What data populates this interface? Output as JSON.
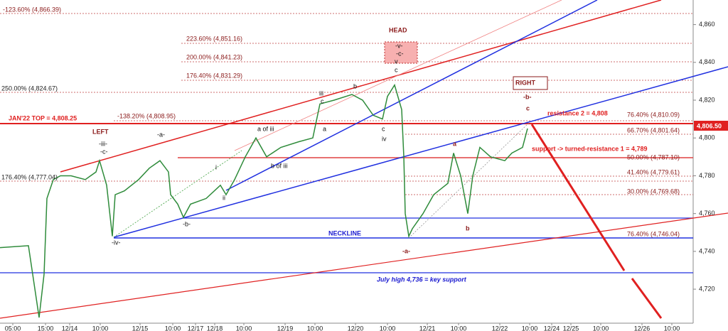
{
  "chart_data": {
    "type": "line",
    "xlim": [
      0,
      97.5
    ],
    "xticks": [
      {
        "value": 1.8,
        "label": "05:00"
      },
      {
        "value": 6.4,
        "label": "15:00"
      },
      {
        "value": 9.8,
        "label": "12/14"
      },
      {
        "value": 14.1,
        "label": "10:00"
      },
      {
        "value": 19.7,
        "label": "12/15"
      },
      {
        "value": 24.3,
        "label": "10:00"
      },
      {
        "value": 27.5,
        "label": "12/17"
      },
      {
        "value": 30.2,
        "label": "12/18"
      },
      {
        "value": 34.3,
        "label": "10:00"
      },
      {
        "value": 40.1,
        "label": "12/19"
      },
      {
        "value": 44.3,
        "label": "10:00"
      },
      {
        "value": 50.0,
        "label": "12/20"
      },
      {
        "value": 54.5,
        "label": "10:00"
      },
      {
        "value": 60.1,
        "label": "12/21"
      },
      {
        "value": 64.5,
        "label": "10:00"
      },
      {
        "value": 70.3,
        "label": "12/22"
      },
      {
        "value": 74.5,
        "label": "10:00"
      },
      {
        "value": 77.6,
        "label": "12/24"
      },
      {
        "value": 80.3,
        "label": "12/25"
      },
      {
        "value": 84.5,
        "label": "10:00"
      },
      {
        "value": 90.3,
        "label": "12/26"
      },
      {
        "value": 94.5,
        "label": "10:00"
      }
    ],
    "ylim": [
      4702,
      4873
    ],
    "yticks": [
      {
        "value": 4720,
        "label": "4,720"
      },
      {
        "value": 4740,
        "label": "4,740"
      },
      {
        "value": 4760,
        "label": "4,760"
      },
      {
        "value": 4780,
        "label": "4,780"
      },
      {
        "value": 4800,
        "label": "4,800"
      },
      {
        "value": 4820,
        "label": "4,820"
      },
      {
        "value": 4840,
        "label": "4,840"
      },
      {
        "value": 4860,
        "label": "4,860"
      }
    ],
    "series": [
      {
        "color": "#2e8b3a",
        "x": [
          0,
          4,
          5.5,
          6.2,
          6.6,
          7.5,
          8.5,
          10,
          12,
          13.5,
          14,
          15,
          15.8,
          16.2,
          17.5,
          19.5,
          21,
          22.5,
          23.7,
          24,
          25,
          25.8,
          26.8,
          29,
          31,
          31.8,
          33,
          34.5,
          36,
          37.5,
          39.5,
          42,
          44,
          45,
          47,
          49.5,
          51,
          52.5,
          53.8,
          54.5,
          55.5,
          56.5,
          56.8,
          57,
          57.5,
          58,
          59.5,
          61,
          63,
          63.8,
          64.8,
          65.8,
          66.5,
          67.5,
          69,
          71,
          72,
          73.5,
          74.2
        ],
        "values": [
          4742,
          4743,
          4705,
          4728,
          4768,
          4778,
          4780,
          4780,
          4778,
          4782,
          4788,
          4775,
          4748,
          4770,
          4772,
          4778,
          4784,
          4788,
          4782,
          4770,
          4765,
          4758,
          4765,
          4768,
          4775,
          4770,
          4778,
          4790,
          4800,
          4790,
          4795,
          4798,
          4800,
          4818,
          4820,
          4823,
          4820,
          4812,
          4810,
          4822,
          4828,
          4815,
          4790,
          4760,
          4748,
          4752,
          4760,
          4770,
          4776,
          4792,
          4780,
          4760,
          4780,
          4795,
          4790,
          4788,
          4792,
          4795,
          4805
        ]
      }
    ],
    "annotations": [
      "-123.60% (4,866.39)",
      "223.60% (4,851.16)",
      "200.00% (4,841.23)",
      "176.40% (4,831.29)",
      "250.00% (4,824.67)",
      "-138.20% (4,808.95)",
      "76.40% (4,810.09)",
      "66.70% (4,801.64)",
      "50.00% (4,787.10)",
      "41.40% (4,779.61)",
      "30.00% (4,769.68)",
      "76.40% (4,746.04)",
      "176.40% (4,777.04)",
      "JAN'22 TOP = 4,808.25",
      "LEFT",
      "HEAD",
      "RIGHT",
      "NECKLINE",
      "July high 4,736 = key support",
      "resistance 2 = 4,808",
      "support -> turned-resistance 1 = 4,789",
      "4,806.50",
      "-iii-",
      "-c-",
      "-a-",
      "-b-",
      "-iv-",
      "i",
      "ii",
      "a of iii",
      "b of iii",
      "iii",
      "c",
      "a",
      "b",
      "c",
      "iv",
      "-v-",
      "-c-",
      "v",
      "c",
      "-b-",
      "c",
      "a",
      "b",
      "-a-"
    ]
  }
}
